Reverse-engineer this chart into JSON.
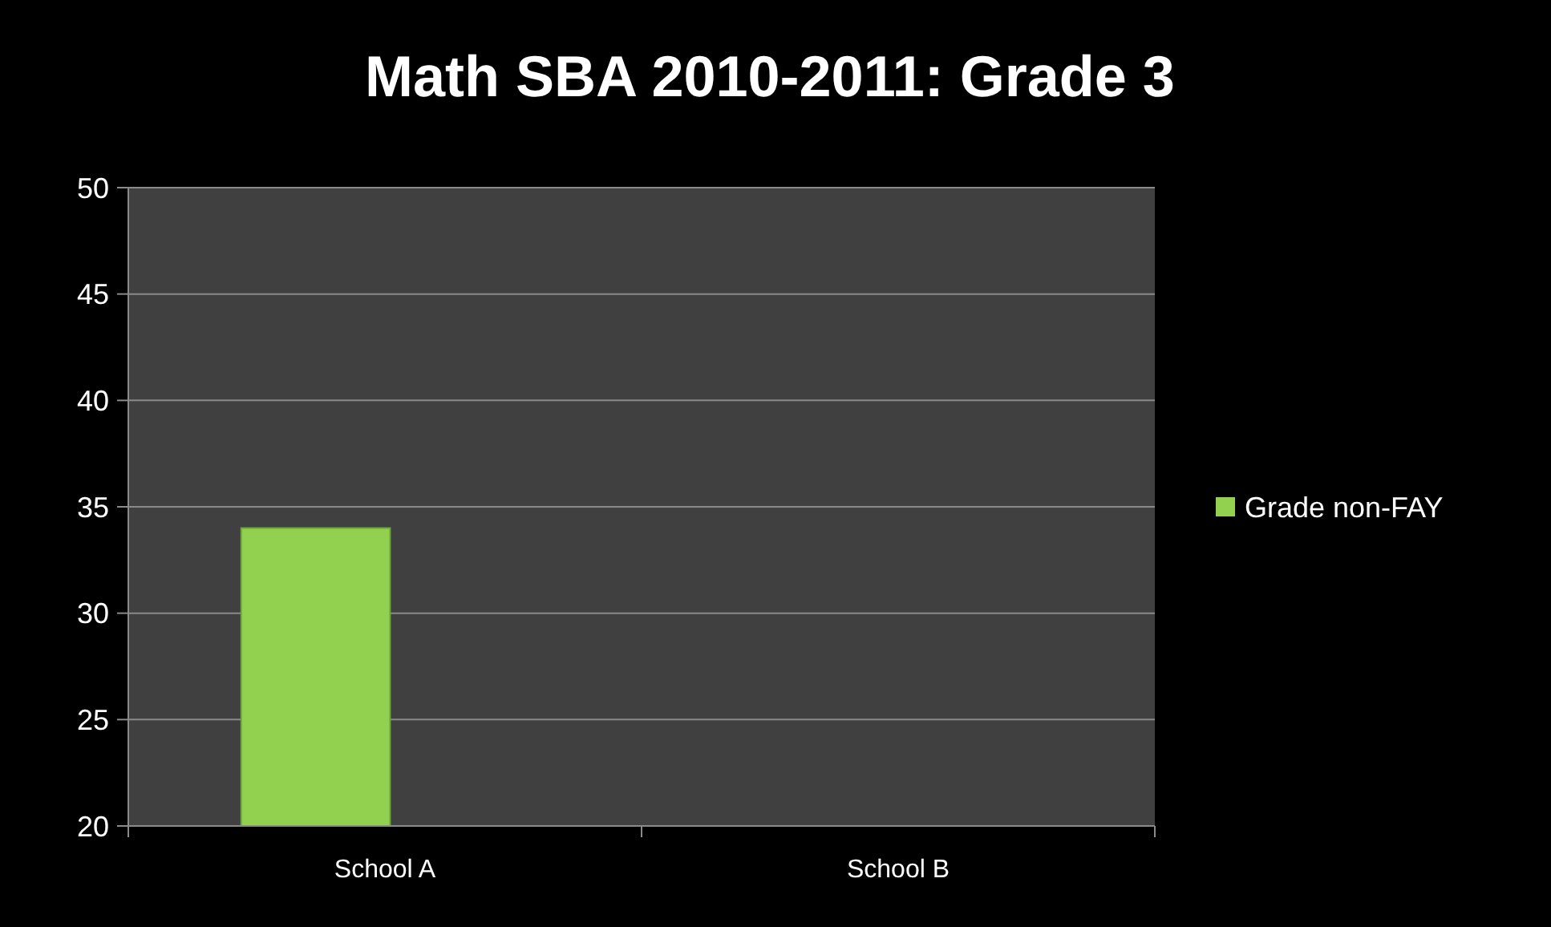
{
  "chart_data": {
    "type": "bar",
    "title": "Math SBA 2010-2011: Grade 3",
    "categories": [
      "School A",
      "School B"
    ],
    "series": [
      {
        "name": "Grade non-FAY",
        "color": "#92d050",
        "values": [
          34,
          null
        ]
      }
    ],
    "ylim": [
      20,
      50
    ],
    "yticks": [
      20,
      25,
      30,
      35,
      40,
      45,
      50
    ],
    "grid": "y",
    "legend": "right"
  }
}
